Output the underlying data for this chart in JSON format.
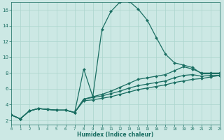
{
  "xlabel": "Humidex (Indice chaleur)",
  "bg_color": "#cce8e4",
  "line_color": "#1a6e62",
  "grid_color": "#aad4cc",
  "line1_x": [
    0,
    1,
    2,
    3,
    4,
    5,
    6,
    7,
    8,
    9,
    10,
    11,
    12,
    13,
    14,
    15,
    16,
    17,
    18,
    19,
    20,
    21,
    22,
    23
  ],
  "line1_y": [
    2.7,
    2.2,
    3.2,
    3.5,
    3.4,
    3.3,
    3.3,
    3.0,
    8.5,
    5.0,
    13.5,
    15.8,
    17.0,
    17.1,
    16.1,
    14.7,
    12.5,
    10.4,
    9.3,
    9.0,
    8.7,
    7.9,
    7.9,
    7.9
  ],
  "line2_x": [
    0,
    1,
    2,
    3,
    4,
    5,
    6,
    7,
    8,
    9,
    10,
    11,
    12,
    13,
    14,
    15,
    16,
    17,
    18,
    19,
    20,
    21,
    22,
    23
  ],
  "line2_y": [
    2.7,
    2.2,
    3.2,
    3.5,
    3.4,
    3.3,
    3.3,
    3.0,
    4.7,
    5.0,
    5.3,
    5.7,
    6.2,
    6.7,
    7.2,
    7.4,
    7.6,
    7.8,
    8.3,
    8.8,
    8.5,
    8.0,
    8.0,
    8.0
  ],
  "line3_x": [
    0,
    1,
    2,
    3,
    4,
    5,
    6,
    7,
    8,
    9,
    10,
    11,
    12,
    13,
    14,
    15,
    16,
    17,
    18,
    19,
    20,
    21,
    22,
    23
  ],
  "line3_y": [
    2.7,
    2.2,
    3.2,
    3.5,
    3.4,
    3.3,
    3.3,
    3.0,
    4.7,
    4.9,
    5.1,
    5.4,
    5.7,
    6.1,
    6.4,
    6.6,
    6.8,
    7.0,
    7.4,
    7.7,
    7.8,
    7.6,
    7.7,
    7.7
  ],
  "line4_x": [
    0,
    1,
    2,
    3,
    4,
    5,
    6,
    7,
    8,
    9,
    10,
    11,
    12,
    13,
    14,
    15,
    16,
    17,
    18,
    19,
    20,
    21,
    22,
    23
  ],
  "line4_y": [
    2.7,
    2.2,
    3.2,
    3.5,
    3.4,
    3.3,
    3.3,
    3.0,
    4.5,
    4.6,
    4.8,
    5.0,
    5.3,
    5.6,
    5.9,
    6.1,
    6.3,
    6.5,
    6.8,
    7.0,
    7.2,
    7.3,
    7.5,
    7.7
  ],
  "xlim": [
    0,
    23
  ],
  "ylim": [
    1.5,
    17.0
  ],
  "yticks": [
    2,
    4,
    6,
    8,
    10,
    12,
    14,
    16
  ],
  "xticks": [
    0,
    1,
    2,
    3,
    4,
    5,
    6,
    7,
    8,
    9,
    10,
    11,
    12,
    13,
    14,
    15,
    16,
    17,
    18,
    19,
    20,
    21,
    22,
    23
  ]
}
